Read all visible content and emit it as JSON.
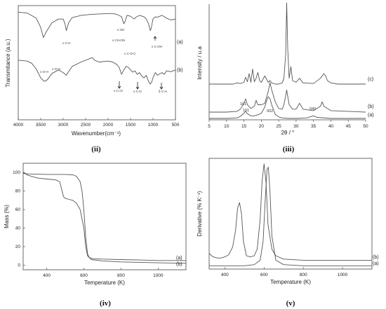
{
  "chart_data": [
    {
      "id": "ii",
      "type": "line",
      "panel_label": "(ii)",
      "xlabel": "Wavenumber(cm⁻¹)",
      "ylabel": "Transmitance (a.u.)",
      "xlim": [
        4000,
        500
      ],
      "xticks": [
        "4000",
        "3500",
        "3000",
        "2500",
        "2000",
        "1500",
        "1000",
        "500"
      ],
      "series": [
        {
          "name": "(a)",
          "x": [
            4000,
            3800,
            3600,
            3500,
            3440,
            3380,
            3250,
            3100,
            3000,
            2960,
            2930,
            2880,
            2800,
            2600,
            2400,
            2200,
            2000,
            1900,
            1800,
            1700,
            1650,
            1620,
            1580,
            1500,
            1420,
            1380,
            1300,
            1200,
            1150,
            1100,
            1060,
            1040,
            1000,
            950,
            900,
            850,
            800,
            700,
            600,
            500
          ],
          "y": [
            95,
            93,
            82,
            62,
            40,
            52,
            72,
            80,
            80,
            70,
            55,
            72,
            83,
            88,
            90,
            91,
            92,
            92,
            90,
            85,
            70,
            75,
            88,
            86,
            80,
            84,
            88,
            85,
            80,
            70,
            55,
            60,
            80,
            85,
            84,
            86,
            88,
            82,
            78,
            80
          ]
        },
        {
          "name": "(b)",
          "x": [
            4000,
            3800,
            3700,
            3600,
            3500,
            3420,
            3350,
            3250,
            3100,
            3000,
            2930,
            2880,
            2800,
            2600,
            2450,
            2350,
            2300,
            2200,
            2000,
            1900,
            1800,
            1750,
            1700,
            1650,
            1600,
            1550,
            1500,
            1450,
            1400,
            1350,
            1300,
            1250,
            1200,
            1150,
            1100,
            1060,
            1030,
            1000,
            950,
            900,
            800,
            750,
            700,
            600,
            500
          ],
          "y": [
            62,
            60,
            55,
            42,
            22,
            14,
            18,
            32,
            40,
            34,
            28,
            36,
            48,
            58,
            64,
            68,
            62,
            58,
            60,
            58,
            52,
            45,
            30,
            40,
            48,
            46,
            40,
            35,
            38,
            30,
            34,
            26,
            22,
            28,
            14,
            8,
            12,
            22,
            34,
            28,
            34,
            30,
            38,
            36,
            40
          ]
        }
      ],
      "annotations_a": [
        "ν O-H",
        "ν C-H",
        "ν OH",
        "ν CH-OH",
        "ν C-OH"
      ],
      "annotations_b": [
        "ν O-H",
        "ν C=O",
        "ν C-O-C",
        "ν C-O",
        "δ C-H"
      ],
      "ylim": [
        0,
        100
      ],
      "grid": false
    },
    {
      "id": "iii",
      "type": "line",
      "panel_label": "(iii)",
      "xlabel": "2θ / °",
      "ylabel": "Intensity / u.a",
      "xlim": [
        5,
        50
      ],
      "xticks": [
        "5",
        "10",
        "15",
        "20",
        "25",
        "30",
        "35",
        "40",
        "45",
        "50"
      ],
      "series": [
        {
          "name": "(c)",
          "x": [
            5,
            10,
            12,
            13,
            14,
            15,
            15.5,
            16,
            16.5,
            17,
            17.5,
            18,
            18.5,
            19,
            19.5,
            20,
            21,
            22,
            22.5,
            23,
            24,
            25,
            26,
            26.5,
            27,
            27.3,
            27.6,
            28,
            28.5,
            29,
            30,
            31,
            32,
            35,
            37,
            38,
            38.5,
            39,
            40,
            42,
            45,
            48,
            50
          ],
          "y": [
            60,
            60,
            60,
            62,
            61,
            63,
            72,
            64,
            78,
            63,
            86,
            64,
            70,
            80,
            66,
            63,
            74,
            63,
            66,
            62,
            60,
            60,
            62,
            70,
            110,
            200,
            120,
            70,
            90,
            66,
            63,
            70,
            62,
            61,
            70,
            78,
            74,
            66,
            62,
            60,
            60,
            60,
            60
          ]
        },
        {
          "name": "(b)",
          "x": [
            5,
            10,
            13,
            14,
            15,
            15.5,
            16,
            17,
            18,
            18.5,
            19,
            20,
            21,
            22,
            22.5,
            23,
            24,
            25,
            26,
            26.5,
            27,
            27.3,
            28,
            29,
            30,
            31,
            32,
            35,
            37,
            37.5,
            38,
            40,
            45,
            50
          ],
          "y": [
            20,
            20,
            21,
            24,
            32,
            38,
            30,
            25,
            28,
            36,
            30,
            30,
            32,
            48,
            60,
            50,
            34,
            25,
            24,
            30,
            42,
            50,
            30,
            24,
            24,
            32,
            24,
            22,
            28,
            34,
            28,
            22,
            21,
            20
          ]
        },
        {
          "name": "(a)",
          "x": [
            5,
            10,
            13,
            14,
            15,
            15.5,
            16,
            17,
            18,
            19,
            20,
            21,
            21.5,
            22,
            22.5,
            23,
            24,
            25,
            26,
            28,
            30,
            33,
            34,
            35,
            36,
            40,
            45,
            50
          ],
          "y": [
            10,
            10,
            11,
            14,
            20,
            24,
            19,
            15,
            15,
            17,
            20,
            32,
            44,
            52,
            48,
            36,
            18,
            13,
            11,
            10,
            10,
            11,
            13,
            15,
            12,
            10,
            10,
            10
          ]
        }
      ],
      "peak_labels": [
        "101",
        "101",
        "002",
        "040"
      ],
      "ylim": [
        0,
        210
      ],
      "grid": false
    },
    {
      "id": "iv",
      "type": "line",
      "panel_label": "(iv)",
      "xlabel": "Temperature (K)",
      "ylabel": "Mass (%)",
      "xlim": [
        273,
        1150
      ],
      "ylim": [
        -5,
        110
      ],
      "xticks": [
        400,
        600,
        800,
        1000
      ],
      "yticks": [
        0,
        20,
        40,
        60,
        80,
        100
      ],
      "series": [
        {
          "name": "(a)",
          "x": [
            273,
            300,
            350,
            400,
            450,
            500,
            540,
            560,
            580,
            590,
            600,
            610,
            620,
            630,
            650,
            700,
            800,
            900,
            1000,
            1150
          ],
          "y": [
            99,
            98.5,
            98.2,
            98,
            98,
            98,
            97.5,
            96,
            90,
            80,
            60,
            30,
            12,
            8,
            7,
            6.5,
            6,
            5.5,
            5,
            5
          ]
        },
        {
          "name": "(b)",
          "x": [
            273,
            300,
            350,
            400,
            450,
            470,
            480,
            490,
            500,
            520,
            540,
            560,
            580,
            600,
            610,
            620,
            640,
            700,
            800,
            900,
            1000,
            1150
          ],
          "y": [
            100,
            97,
            94,
            93,
            92,
            90,
            82,
            74,
            72,
            71,
            70,
            67,
            60,
            40,
            20,
            10,
            6,
            4.5,
            3.5,
            3,
            2.5,
            2
          ]
        }
      ],
      "grid": false
    },
    {
      "id": "v",
      "type": "line",
      "panel_label": "(v)",
      "xlabel": "Temperature (K)",
      "ylabel": "Derivative (% K⁻¹)",
      "xlim": [
        320,
        1150
      ],
      "ylim": [
        0,
        100
      ],
      "xticks": [
        400,
        600,
        800,
        1000
      ],
      "series": [
        {
          "name": "(b)",
          "x": [
            320,
            340,
            360,
            380,
            400,
            420,
            440,
            455,
            465,
            475,
            485,
            495,
            510,
            530,
            550,
            565,
            580,
            590,
            600,
            610,
            620,
            640,
            660,
            700,
            800,
            1000,
            1150
          ],
          "y": [
            14,
            11,
            10,
            10,
            11,
            13,
            20,
            35,
            55,
            60,
            50,
            25,
            12,
            11,
            12,
            18,
            45,
            80,
            95,
            78,
            40,
            18,
            12,
            9,
            8,
            8,
            8
          ]
        },
        {
          "name": "(a)",
          "x": [
            320,
            400,
            500,
            550,
            580,
            595,
            605,
            615,
            622,
            630,
            640,
            660,
            700,
            800,
            1000,
            1150
          ],
          "y": [
            3,
            3,
            3,
            4,
            8,
            25,
            60,
            90,
            92,
            70,
            30,
            8,
            4,
            3,
            3,
            3
          ]
        }
      ],
      "grid": false
    }
  ]
}
